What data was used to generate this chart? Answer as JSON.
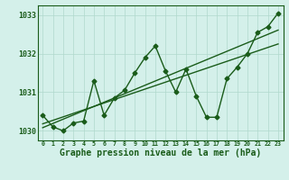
{
  "xlabel": "Graphe pression niveau de la mer (hPa)",
  "x": [
    0,
    1,
    2,
    3,
    4,
    5,
    6,
    7,
    8,
    9,
    10,
    11,
    12,
    13,
    14,
    15,
    16,
    17,
    18,
    19,
    20,
    21,
    22,
    23
  ],
  "line1": [
    1030.4,
    1030.1,
    1030.0,
    1030.2,
    1030.25,
    1031.3,
    1030.4,
    1030.85,
    1031.05,
    1031.5,
    1031.9,
    1032.2,
    1031.55,
    1031.0,
    1031.6,
    1030.9,
    1030.35,
    1030.35,
    1031.35,
    1031.65,
    1032.0,
    1032.55,
    1032.7,
    1033.05
  ],
  "trend1": [
    1030.08,
    1030.19,
    1030.3,
    1030.41,
    1030.52,
    1030.63,
    1030.74,
    1030.85,
    1030.96,
    1031.07,
    1031.18,
    1031.29,
    1031.4,
    1031.51,
    1031.62,
    1031.73,
    1031.84,
    1031.95,
    1032.06,
    1032.17,
    1032.28,
    1032.39,
    1032.5,
    1032.61
  ],
  "trend2": [
    1030.18,
    1030.27,
    1030.36,
    1030.45,
    1030.54,
    1030.63,
    1030.72,
    1030.81,
    1030.9,
    1030.99,
    1031.08,
    1031.17,
    1031.26,
    1031.35,
    1031.44,
    1031.53,
    1031.62,
    1031.71,
    1031.8,
    1031.89,
    1031.98,
    1032.07,
    1032.16,
    1032.25
  ],
  "ylim": [
    1029.75,
    1033.25
  ],
  "xlim": [
    -0.5,
    23.5
  ],
  "bg_color": "#d4f0ea",
  "plot_bg_color": "#d4f0ea",
  "line_color": "#1a5c1a",
  "grid_color": "#b0d8cc",
  "marker": "D",
  "marker_size": 2.5,
  "line_width": 1.0,
  "yticks": [
    1030,
    1031,
    1032,
    1033
  ],
  "xtick_labels": [
    "0",
    "1",
    "2",
    "3",
    "4",
    "5",
    "6",
    "7",
    "8",
    "9",
    "10",
    "11",
    "12",
    "13",
    "14",
    "15",
    "16",
    "17",
    "18",
    "19",
    "20",
    "21",
    "22",
    "23"
  ]
}
